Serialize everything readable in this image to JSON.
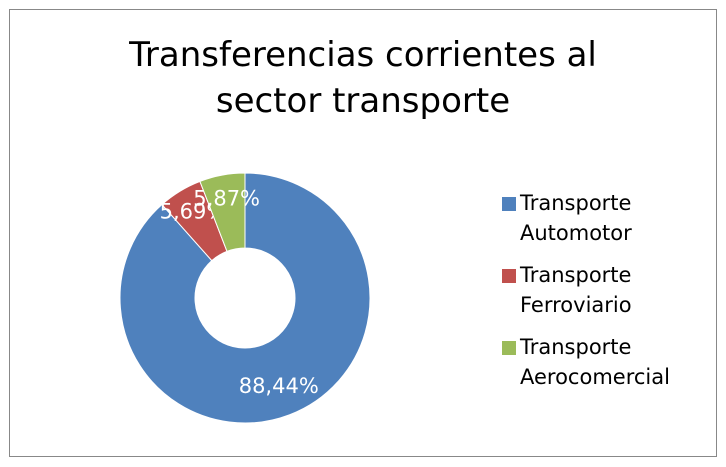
{
  "chart_data": {
    "type": "donut",
    "title": "Transferencias corrientes al sector transporte",
    "categories": [
      "Transporte Automotor",
      "Transporte Ferroviario",
      "Transporte Aerocomercial"
    ],
    "values": [
      88.44,
      5.69,
      5.87
    ],
    "value_labels": [
      "88,44%",
      "5,69%",
      "5,87%"
    ],
    "colors": [
      "#4f81bd",
      "#c0504d",
      "#9bbb59"
    ],
    "legend": "right"
  }
}
